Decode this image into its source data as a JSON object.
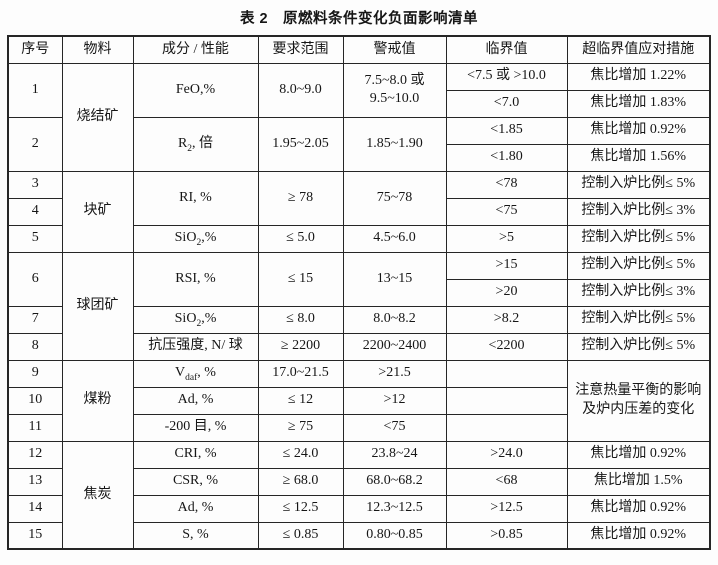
{
  "caption": "表 2　原燃料条件变化负面影响清单",
  "colors": {
    "ink": "#161616",
    "border": "#262626",
    "background": "#fdfdfd"
  },
  "header": [
    "序号",
    "物料",
    "成分 / 性能",
    "要求范围",
    "警戒值",
    "临界值",
    "超临界值应对措施"
  ],
  "rows": [
    [
      "1",
      "烧结矿",
      "FeO,%",
      "8.0~9.0",
      "7.5~8.0 或\n9.5~10.0",
      "<7.5 或 >10.0",
      "焦比增加 1.22%"
    ],
    [
      "<7.0",
      "焦比增加 1.83%"
    ],
    [
      "2",
      "R_{2}, 倍",
      "1.95~2.05",
      "1.85~1.90",
      "<1.85",
      "焦比增加 0.92%"
    ],
    [
      "<1.80",
      "焦比增加 1.56%"
    ],
    [
      "3",
      "块矿",
      "RI, %",
      "≥ 78",
      "75~78",
      "<78",
      "控制入炉比例≤ 5%"
    ],
    [
      "4",
      "<75",
      "控制入炉比例≤ 3%"
    ],
    [
      "5",
      "SiO_{2},%",
      "≤ 5.0",
      "4.5~6.0",
      ">5",
      "控制入炉比例≤ 5%"
    ],
    [
      "6",
      "球团矿",
      "RSI, %",
      "≤ 15",
      "13~15",
      ">15",
      "控制入炉比例≤ 5%"
    ],
    [
      ">20",
      "控制入炉比例≤ 3%"
    ],
    [
      "7",
      "SiO_{2},%",
      "≤ 8.0",
      "8.0~8.2",
      ">8.2",
      "控制入炉比例≤ 5%"
    ],
    [
      "8",
      "抗压强度, N/ 球",
      "≥ 2200",
      "2200~2400",
      "<2200",
      "控制入炉比例≤ 5%"
    ],
    [
      "9",
      "煤粉",
      "V_{daf}, %",
      "17.0~21.5",
      ">21.5",
      "",
      "注意热量平衡的影响\n及炉内压差的变化"
    ],
    [
      "10",
      "Ad, %",
      "≤ 12",
      ">12",
      ""
    ],
    [
      "11",
      "-200 目, %",
      "≥ 75",
      "<75",
      ""
    ],
    [
      "12",
      "焦炭",
      "CRI, %",
      "≤ 24.0",
      "23.8~24",
      ">24.0",
      "焦比增加 0.92%"
    ],
    [
      "13",
      "CSR, %",
      "≥ 68.0",
      "68.0~68.2",
      "<68",
      "焦比增加 1.5%"
    ],
    [
      "14",
      "Ad, %",
      "≤ 12.5",
      "12.3~12.5",
      ">12.5",
      "焦比增加 0.92%"
    ],
    [
      "15",
      "S, %",
      "≤ 0.85",
      "0.80~0.85",
      ">0.85",
      "焦比增加 0.92%"
    ]
  ]
}
